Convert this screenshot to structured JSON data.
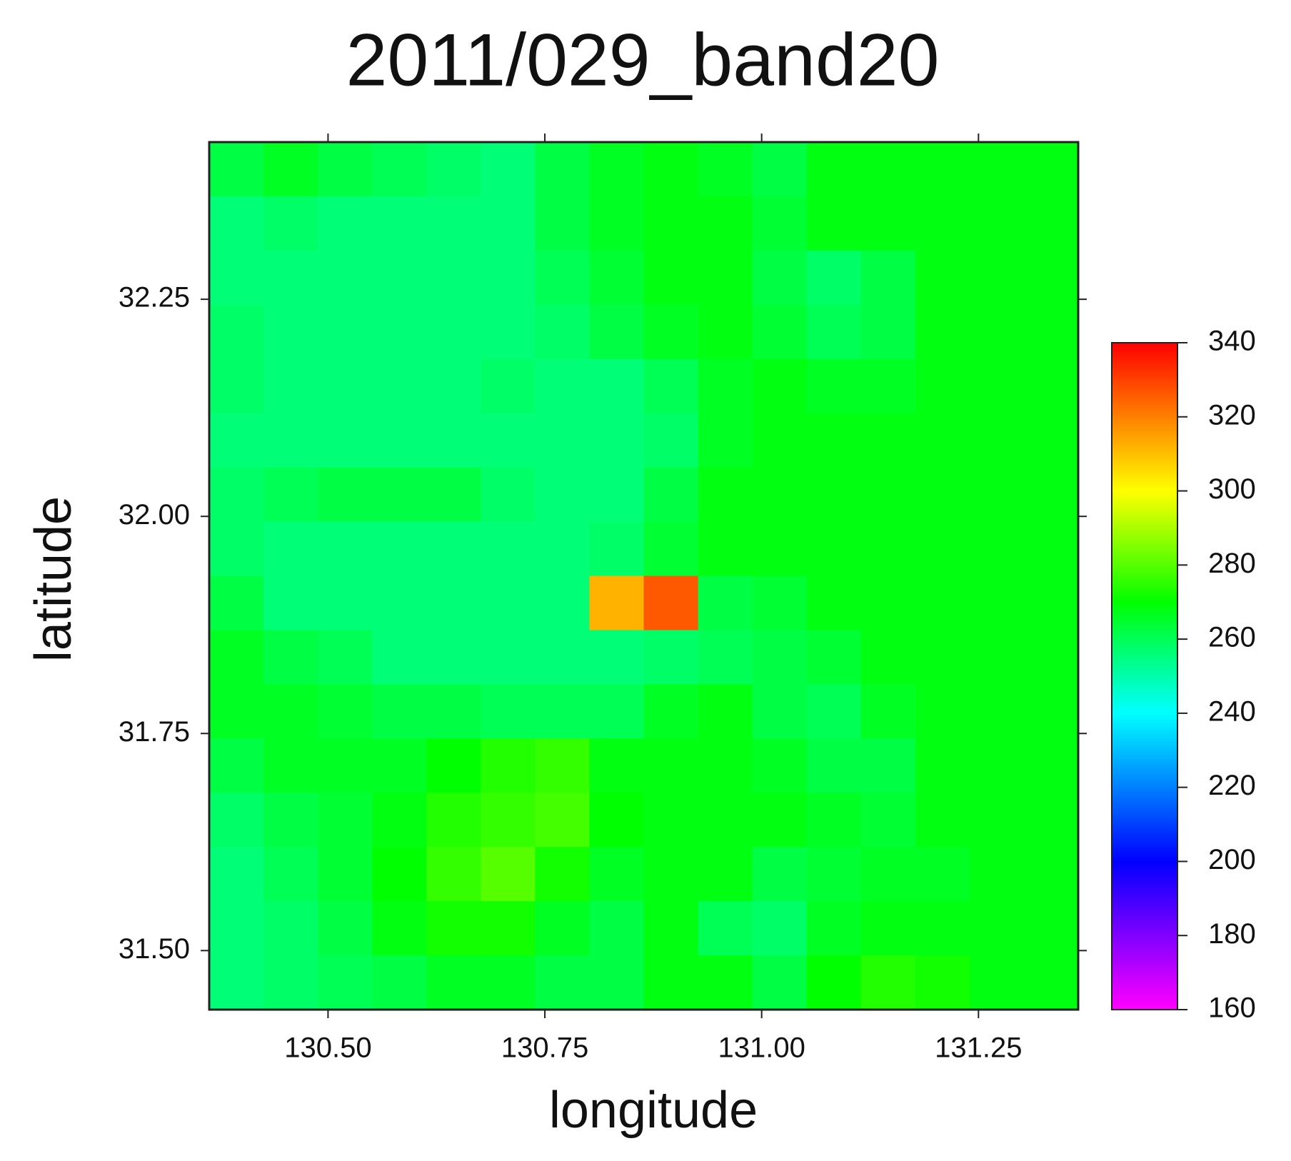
{
  "chart_data": {
    "type": "heatmap",
    "title": "2011/029_band20",
    "x_label": "longitude",
    "y_label": "latitude",
    "xlim": [
      130.363,
      131.365
    ],
    "ylim": [
      31.432,
      32.431
    ],
    "xticks": [
      {
        "value": 130.5,
        "label": "130.50"
      },
      {
        "value": 130.75,
        "label": "130.75"
      },
      {
        "value": 131,
        "label": "131.00"
      },
      {
        "value": 131.25,
        "label": "131.25"
      }
    ],
    "yticks": [
      {
        "value": 31.5,
        "label": "31.50"
      },
      {
        "value": 31.75,
        "label": "31.75"
      },
      {
        "value": 32,
        "label": "32.00"
      },
      {
        "value": 32.25,
        "label": "32.25"
      }
    ],
    "zlim": [
      160,
      340
    ],
    "zticks": [
      160,
      180,
      200,
      220,
      240,
      260,
      280,
      300,
      320,
      340
    ],
    "colorscale": [
      [
        160,
        "#ff00ff"
      ],
      [
        200,
        "#0000ff"
      ],
      [
        240,
        "#00ffff"
      ],
      [
        270,
        "#00ff00"
      ],
      [
        300,
        "#ffff00"
      ],
      [
        340,
        "#ff0000"
      ]
    ],
    "z": [
      [
        262,
        266,
        262,
        260,
        258,
        256,
        262,
        266,
        268,
        266,
        262,
        268,
        268,
        268,
        268,
        268
      ],
      [
        256,
        258,
        256,
        256,
        256,
        256,
        262,
        266,
        268,
        268,
        264,
        268,
        268,
        268,
        268,
        268
      ],
      [
        256,
        256,
        256,
        256,
        256,
        256,
        260,
        264,
        268,
        268,
        262,
        258,
        262,
        268,
        268,
        268
      ],
      [
        258,
        256,
        256,
        256,
        256,
        256,
        258,
        262,
        266,
        268,
        264,
        260,
        262,
        268,
        268,
        268
      ],
      [
        258,
        256,
        256,
        256,
        256,
        258,
        256,
        256,
        260,
        266,
        268,
        266,
        266,
        268,
        268,
        268
      ],
      [
        256,
        256,
        256,
        256,
        256,
        256,
        256,
        256,
        258,
        266,
        268,
        268,
        268,
        268,
        268,
        268
      ],
      [
        258,
        260,
        262,
        262,
        262,
        258,
        256,
        256,
        262,
        268,
        268,
        268,
        268,
        268,
        268,
        268
      ],
      [
        258,
        256,
        256,
        256,
        256,
        256,
        256,
        258,
        264,
        268,
        268,
        268,
        268,
        268,
        268,
        268
      ],
      [
        262,
        256,
        256,
        256,
        256,
        256,
        256,
        312,
        326,
        262,
        264,
        268,
        268,
        268,
        268,
        268
      ],
      [
        266,
        262,
        260,
        256,
        256,
        256,
        256,
        256,
        258,
        260,
        262,
        264,
        268,
        268,
        268,
        268
      ],
      [
        266,
        266,
        264,
        262,
        262,
        260,
        260,
        260,
        266,
        268,
        262,
        260,
        266,
        268,
        268,
        268
      ],
      [
        262,
        266,
        266,
        266,
        270,
        274,
        276,
        268,
        268,
        268,
        266,
        262,
        262,
        268,
        268,
        268
      ],
      [
        258,
        262,
        264,
        268,
        274,
        276,
        278,
        270,
        268,
        268,
        268,
        266,
        264,
        268,
        268,
        268
      ],
      [
        256,
        260,
        264,
        270,
        276,
        280,
        272,
        266,
        268,
        268,
        262,
        264,
        266,
        266,
        268,
        268
      ],
      [
        256,
        258,
        262,
        268,
        272,
        272,
        266,
        262,
        268,
        260,
        258,
        266,
        268,
        268,
        268,
        268
      ],
      [
        256,
        258,
        260,
        262,
        266,
        266,
        262,
        262,
        268,
        268,
        262,
        270,
        274,
        272,
        268,
        268
      ]
    ]
  }
}
